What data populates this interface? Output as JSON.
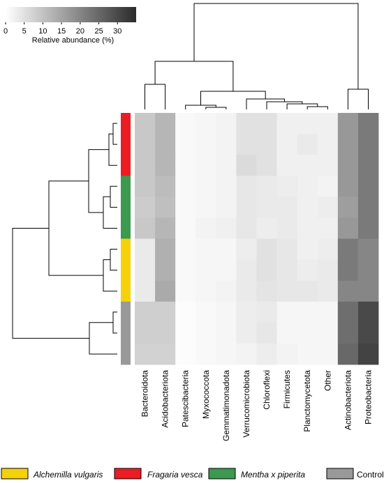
{
  "chart_data": {
    "type": "heatmap",
    "colorbar": {
      "label": "Relative abundance (%)",
      "ticks": [
        0,
        5,
        10,
        15,
        20,
        25,
        30
      ],
      "range": [
        0,
        35
      ],
      "colors": [
        "#ffffff",
        "#2b2b2b"
      ]
    },
    "columns": [
      "Bacteroidota",
      "Acidobacteriota",
      "Patescibacteria",
      "Myxococcota",
      "Gemmatimonadota",
      "Verrucomicrobiota",
      "Chloroflexi",
      "Firmicutes",
      "Planctomycetota",
      "Other",
      "Actinobacteriota",
      "Proteobacteria"
    ],
    "row_groups": [
      "Fragaria vesca",
      "Fragaria vesca",
      "Fragaria vesca",
      "Mentha x piperita",
      "Mentha x piperita",
      "Mentha x piperita",
      "Alchemilla vulgaris",
      "Alchemilla vulgaris",
      "Alchemilla vulgaris",
      "Control",
      "Control",
      "Control"
    ],
    "values": [
      [
        9,
        12,
        1,
        1.5,
        2,
        5,
        5,
        2.5,
        2.5,
        2.5,
        17,
        22
      ],
      [
        9,
        12,
        1,
        1.5,
        2,
        5,
        5,
        2.5,
        3.5,
        2.5,
        17,
        22
      ],
      [
        9,
        12,
        1,
        1.5,
        2,
        6,
        5,
        2.5,
        2.5,
        2.5,
        17,
        22
      ],
      [
        9,
        11,
        1,
        1.5,
        2,
        4,
        3.5,
        3,
        2.5,
        2,
        17,
        22
      ],
      [
        8.5,
        10.5,
        1,
        1.5,
        2,
        4,
        3.5,
        3.5,
        2.5,
        3,
        16,
        22
      ],
      [
        9,
        12,
        1,
        2,
        2.5,
        4,
        3,
        3.5,
        2.5,
        2.5,
        17,
        22
      ],
      [
        3.5,
        13,
        1,
        1.5,
        1.5,
        3,
        5,
        4,
        2.5,
        3,
        22,
        20
      ],
      [
        3.5,
        13,
        1,
        1.5,
        1.5,
        3.5,
        5,
        4,
        3,
        3.5,
        22,
        20
      ],
      [
        3.5,
        14,
        1,
        1.5,
        2,
        3.5,
        4.5,
        4,
        4,
        3.5,
        20,
        20
      ],
      [
        8,
        8,
        0.5,
        1,
        1.5,
        3,
        3.5,
        1.5,
        1.5,
        1.5,
        24,
        30
      ],
      [
        8,
        8,
        0.5,
        1,
        1.5,
        3,
        4,
        1.5,
        1.5,
        1.5,
        24,
        30
      ],
      [
        7.5,
        7.5,
        0.5,
        1,
        1.5,
        2,
        3,
        2,
        1.5,
        1.5,
        25,
        31
      ]
    ],
    "legend": [
      {
        "label": "Alchemilla vulgaris",
        "color": "#f5d109",
        "italic": true
      },
      {
        "label": "Fragaria vesca",
        "color": "#ec1c24",
        "italic": true
      },
      {
        "label": "Mentha x piperita",
        "color": "#3b9950",
        "italic": true
      },
      {
        "label": "Control",
        "color": "#999999",
        "italic": false
      }
    ],
    "group_colors": {
      "Fragaria vesca": "#ec1c24",
      "Mentha x piperita": "#3b9950",
      "Alchemilla vulgaris": "#f5d109",
      "Control": "#999999"
    },
    "legend_position": "bottom"
  }
}
